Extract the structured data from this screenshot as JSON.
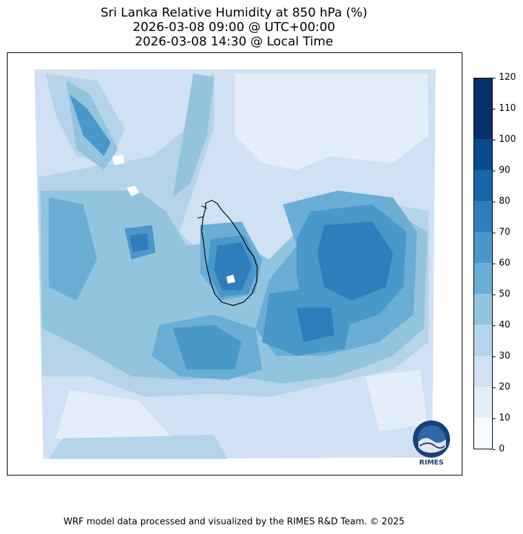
{
  "title": {
    "line1": "Sri Lanka Relative Humidity at 850 hPa (%)",
    "line2": "2026-03-08 09:00 @ UTC+00:00",
    "line3": "2026-03-08 14:30 @ Local Time"
  },
  "colorbar": {
    "levels": [
      0,
      10,
      20,
      30,
      40,
      50,
      60,
      70,
      80,
      90,
      100,
      110,
      120
    ],
    "labels": [
      "0",
      "10",
      "20",
      "30",
      "40",
      "50",
      "60",
      "70",
      "80",
      "90",
      "100",
      "110",
      "120"
    ],
    "colors": [
      "#f7fbff",
      "#e3eef9",
      "#cfe1f2",
      "#b5d4e9",
      "#93c4de",
      "#6aaed6",
      "#4a98c9",
      "#2e7ebc",
      "#1864aa",
      "#0a4a90",
      "#08306b",
      "#08306b"
    ]
  },
  "logo": {
    "text": "RIMES",
    "icon": "rimes-globe-icon"
  },
  "footer": "WRF model data processed and visualized by the RIMES R&D Team. © 2025",
  "map": {
    "region": "Sri Lanka",
    "icon": "sri-lanka-coastline"
  }
}
